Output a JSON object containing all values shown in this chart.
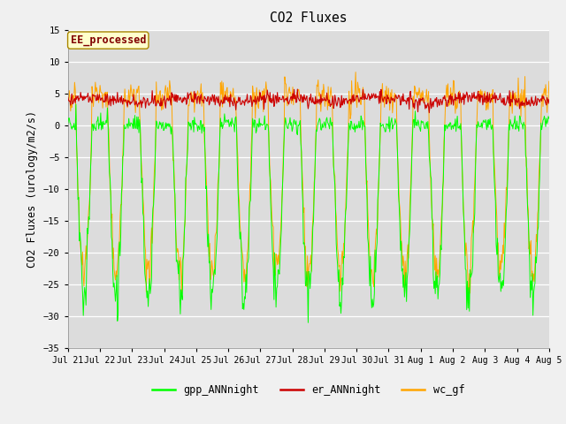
{
  "title": "CO2 Fluxes",
  "ylabel": "CO2 Fluxes (urology/m2/s)",
  "ylim": [
    -35,
    15
  ],
  "yticks": [
    -35,
    -30,
    -25,
    -20,
    -15,
    -10,
    -5,
    0,
    5,
    10,
    15
  ],
  "background_color": "#dcdcdc",
  "fig_background": "#f0f0f0",
  "gpp_color": "#00ff00",
  "er_color": "#cc0000",
  "wc_color": "#ffa500",
  "annotation_text": "EE_processed",
  "annotation_color": "#800000",
  "annotation_bg": "#ffffcc",
  "annotation_border": "#aa8800",
  "legend_items": [
    "gpp_ANNnight",
    "er_ANNnight",
    "wc_gf"
  ],
  "legend_colors": [
    "#00ff00",
    "#cc0000",
    "#ffa500"
  ],
  "n_days": 15,
  "seed": 42
}
